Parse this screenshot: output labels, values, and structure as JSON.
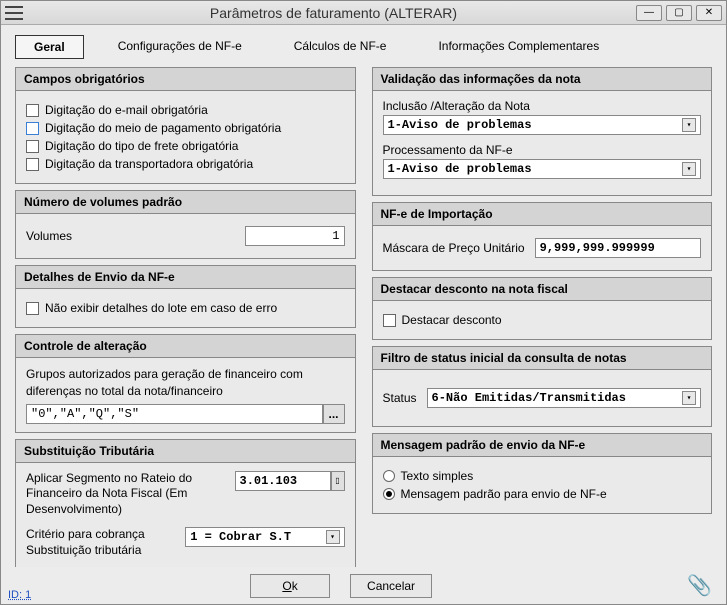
{
  "window": {
    "title": "Parâmetros de faturamento (ALTERAR)",
    "id_text": "ID: 1"
  },
  "tabs": {
    "general": "Geral",
    "nfe_config": "Configurações de NF-e",
    "nfe_calc": "Cálculos de NF-e",
    "comp_info": "Informações Complementares"
  },
  "left": {
    "mandatory_header": "Campos obrigatórios",
    "chk_email": "Digitação do e-mail obrigatória",
    "chk_payment": "Digitação do meio de pagamento obrigatória",
    "chk_freight": "Digitação do tipo de frete obrigatória",
    "chk_carrier": "Digitação da transportadora obrigatória",
    "volumes_header": "Número de volumes padrão",
    "volumes_label": "Volumes",
    "volumes_value": "1",
    "send_header": "Detalhes de Envio da NF-e",
    "chk_hide_lot": "Não exibir detalhes do lote em caso de erro",
    "change_header": "Controle de alteração",
    "groups_label": "Grupos autorizados para geração de financeiro com diferenças no total da nota/financeiro",
    "groups_value": "\"0\",\"A\",\"Q\",\"S\"",
    "st_header": "Substituição Tributária",
    "seg_label": "Aplicar Segmento no Rateio do Financeiro da Nota Fiscal (Em Desenvolvimento)",
    "seg_value": "3.01.103",
    "crit_label": "Critério para cobrança Substituição tributária",
    "crit_value": "1 = Cobrar S.T"
  },
  "right": {
    "valid_header": "Validação das informações da nota",
    "include_label": "Inclusão /Alteração da Nota",
    "include_value": "1-Aviso de problemas",
    "proc_label": "Processamento da NF-e",
    "proc_value": "1-Aviso de problemas",
    "import_header": "NF-e de Importação",
    "mask_label": "Máscara de Preço Unitário",
    "mask_value": "9,999,999.999999",
    "discount_header": "Destacar desconto na nota fiscal",
    "chk_discount": "Destacar desconto",
    "filter_header": "Filtro de status inicial da consulta de notas",
    "status_label": "Status",
    "status_value": "6-Não Emitidas/Transmitidas",
    "msg_header": "Mensagem padrão de envio da NF-e",
    "radio_simple": "Texto simples",
    "radio_default": "Mensagem padrão para envio de NF-e"
  },
  "footer": {
    "ok": "Ok",
    "cancel": "Cancelar"
  },
  "colors": {
    "window_bg": "#ececec",
    "group_header_bg": "#d4d4d4",
    "border": "#888888",
    "link": "#2050c0"
  }
}
